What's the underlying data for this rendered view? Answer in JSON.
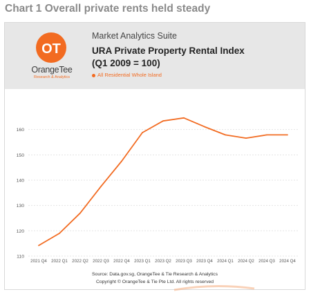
{
  "caption": "Chart 1 Overall private rents held steady",
  "header": {
    "logo_text": "OT",
    "brand": "OrangeTee",
    "brand_sub": "Research & Analytics",
    "suite": "Market Analytics Suite",
    "title_line1": "URA Private Property Rental Index",
    "title_line2": "(Q1 2009 = 100)",
    "legend_label": "All Residential Whole Island"
  },
  "footer": {
    "source": "Source: Data.gov.sg, OrangeTee & Tie Research & Analytics",
    "copyright": "Copyright © OrangeTee & Tie Pte Ltd. All rights reserved"
  },
  "colors": {
    "accent": "#f26b21",
    "header_bg": "#e7e7e7"
  },
  "chart_data": {
    "type": "line",
    "categories": [
      "2021 Q4",
      "2022 Q1",
      "2022 Q2",
      "2022 Q3",
      "2022 Q4",
      "2023 Q1",
      "2023 Q2",
      "2023 Q3",
      "2023 Q4",
      "2024 Q1",
      "2024 Q2",
      "2024 Q3",
      "2024 Q4"
    ],
    "series": [
      {
        "name": "All Residential Whole Island",
        "values": [
          114.2,
          119.0,
          127.0,
          137.5,
          147.5,
          158.8,
          163.4,
          164.6,
          161.1,
          157.9,
          156.6,
          157.9,
          157.9
        ]
      }
    ],
    "yticks": [
      "110",
      "120",
      "130",
      "140",
      "150",
      "160"
    ],
    "ylim": [
      110,
      170
    ],
    "grid": true,
    "legend": "top-left"
  }
}
